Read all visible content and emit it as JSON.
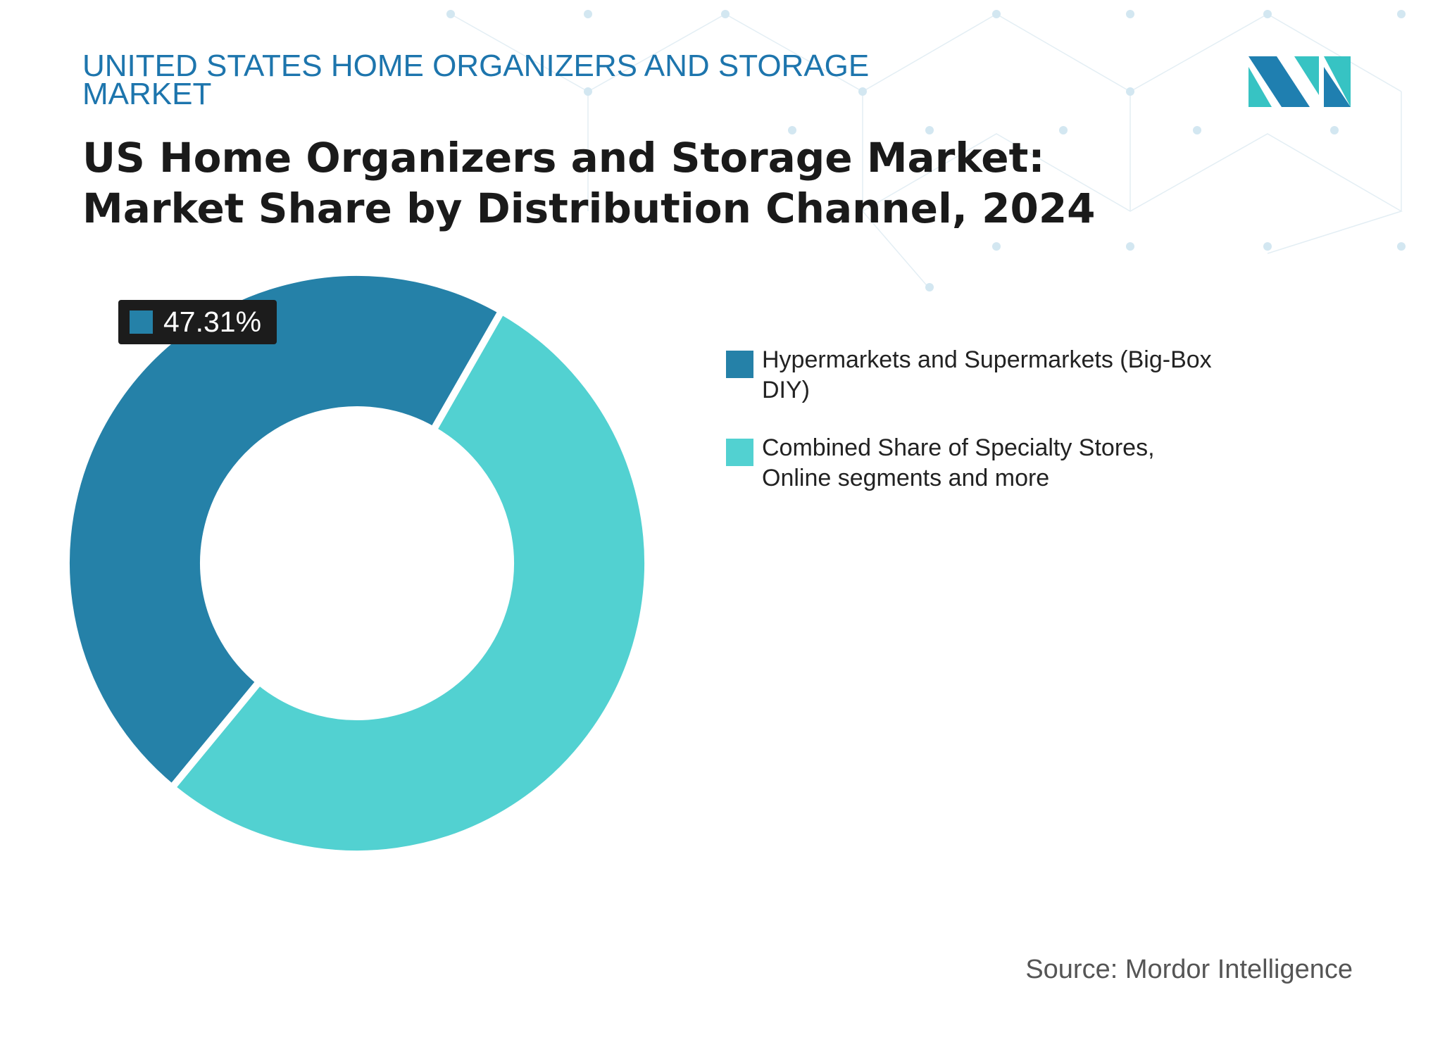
{
  "chart_data": {
    "type": "pie",
    "header": "UNITED STATES HOME ORGANIZERS AND STORAGE MARKET",
    "title": "US Home Organizers and Storage Market: Market Share by Distribution Channel, 2024",
    "categories": [
      "Hypermarkets and Supermarkets (Big-Box DIY)",
      "Combined Share of Specialty Stores, Online segments and more"
    ],
    "values": [
      47.31,
      52.69
    ],
    "value_labels": [
      "47.31%",
      null
    ],
    "colors": [
      "#2581a8",
      "#52d1d1"
    ],
    "source": "Source: Mordor Intelligence"
  }
}
